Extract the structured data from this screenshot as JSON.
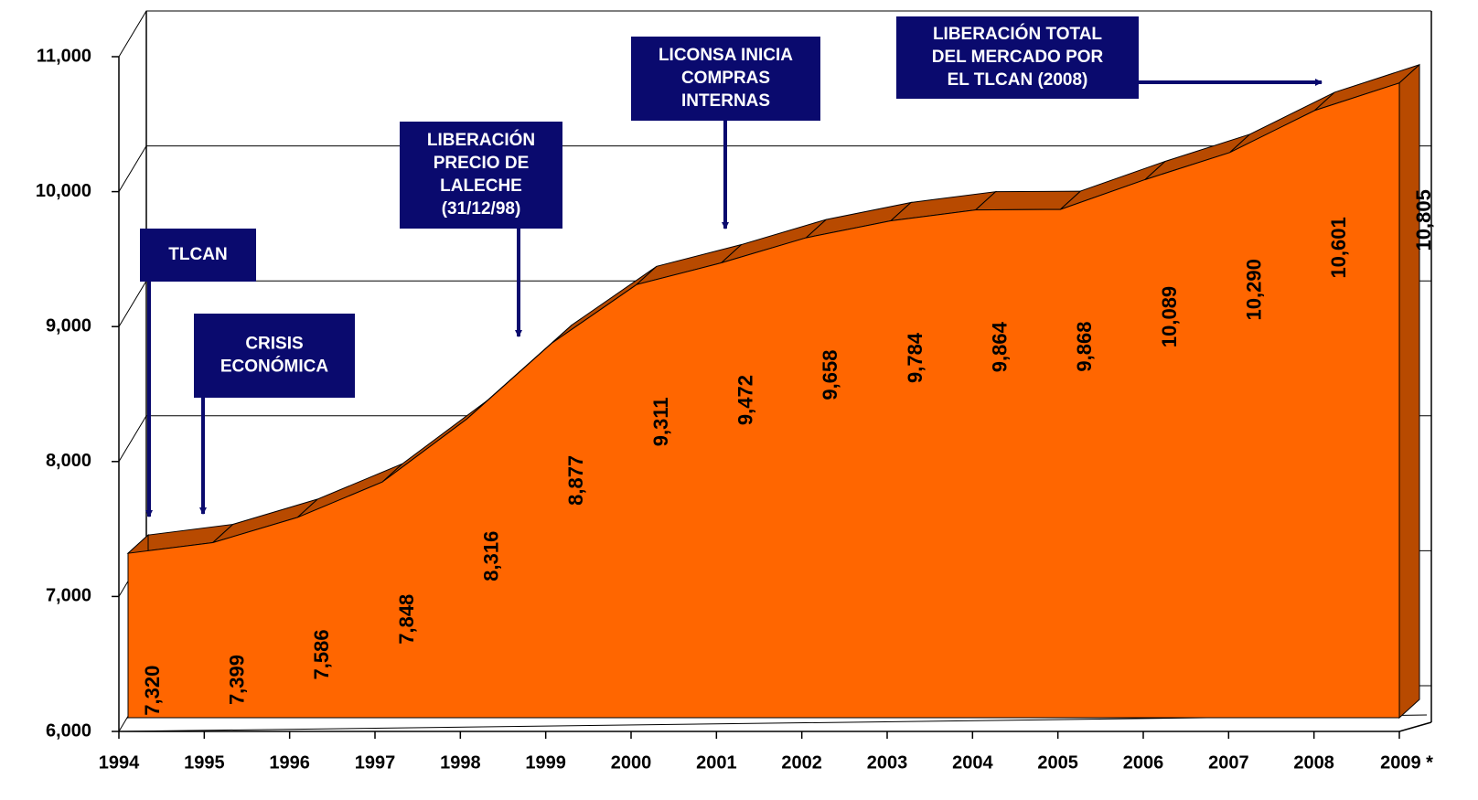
{
  "chart_data": {
    "type": "area",
    "categories": [
      "1994",
      "1995",
      "1996",
      "1997",
      "1998",
      "1999",
      "2000",
      "2001",
      "2002",
      "2003",
      "2004",
      "2005",
      "2006",
      "2007",
      "2008",
      "2009 *"
    ],
    "values": [
      7320,
      7399,
      7586,
      7848,
      8316,
      8877,
      9311,
      9472,
      9658,
      9784,
      9864,
      9868,
      10089,
      10290,
      10601,
      10805
    ],
    "value_labels": [
      "7,320",
      "7,399",
      "7,586",
      "7,848",
      "8,316",
      "8,877",
      "9,311",
      "9,472",
      "9,658",
      "9,784",
      "9,864",
      "9,868",
      "10,089",
      "10,290",
      "10,601",
      "10,805"
    ],
    "color": "#ff6600",
    "ylim": [
      6000,
      11000
    ],
    "yticks": [
      {
        "value": 6000,
        "label": "6,000"
      },
      {
        "value": 7000,
        "label": "7,000"
      },
      {
        "value": 8000,
        "label": "8,000"
      },
      {
        "value": 9000,
        "label": "9,000"
      },
      {
        "value": 10000,
        "label": "10,000"
      },
      {
        "value": 11000,
        "label": "11,000"
      }
    ],
    "grid": true,
    "annotations": [
      {
        "lines": [
          "TLCAN"
        ]
      },
      {
        "lines": [
          "CRISIS",
          "ECONÓMICA"
        ]
      },
      {
        "lines": [
          "LIBERACIÓN",
          "PRECIO DE",
          "LALECHE",
          "(31/12/98)"
        ]
      },
      {
        "lines": [
          "LICONSA INICIA",
          "COMPRAS",
          "INTERNAS"
        ]
      },
      {
        "lines": [
          "LIBERACIÓN TOTAL",
          "DEL MERCADO POR",
          "EL TLCAN (2008)"
        ]
      }
    ]
  }
}
